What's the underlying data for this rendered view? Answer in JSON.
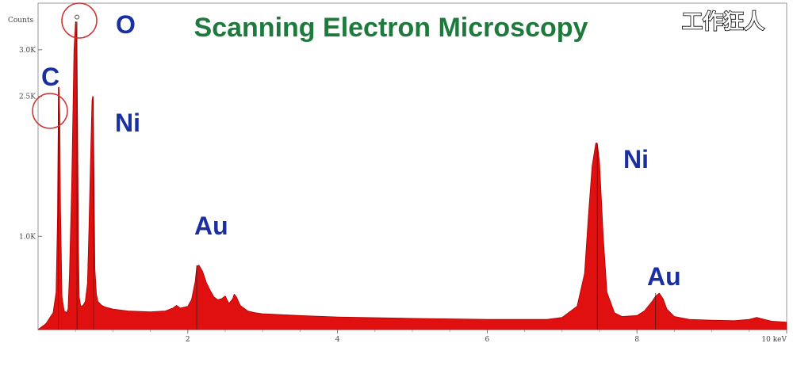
{
  "title": "Scanning Electron Microscopy",
  "watermark": "工作狂人",
  "colors": {
    "title": "#1e7a3c",
    "element_labels": "#1a2fa0",
    "spectrum_fill": "#e01010",
    "spectrum_edge": "#b00000",
    "circle": "#d03030"
  },
  "chart_data": {
    "type": "area",
    "xlim": [
      0,
      10
    ],
    "ylim": [
      0,
      3500
    ],
    "x_ticks": [
      "2",
      "4",
      "6",
      "8",
      "10 keV"
    ],
    "y_ticks": [
      "1.0K",
      "2.5K",
      "3.0K"
    ],
    "y_unit": "Counts",
    "series": [
      {
        "x": [
          0.0,
          0.1,
          0.12,
          0.15,
          0.2,
          0.24,
          0.26,
          0.27,
          0.28,
          0.29,
          0.3,
          0.32,
          0.35,
          0.38,
          0.4,
          0.42,
          0.45,
          0.48,
          0.5,
          0.51,
          0.52,
          0.53,
          0.54,
          0.55,
          0.57,
          0.6,
          0.63,
          0.66,
          0.68,
          0.7,
          0.72,
          0.73,
          0.74,
          0.75,
          0.76,
          0.78,
          0.8,
          0.85,
          0.9,
          0.95,
          1.0,
          1.2,
          1.5,
          1.7,
          1.8,
          1.85,
          1.9,
          2.0,
          2.05,
          2.1,
          2.12,
          2.15,
          2.2,
          2.25,
          2.3,
          2.35,
          2.4,
          2.45,
          2.5,
          2.55,
          2.6,
          2.62,
          2.65,
          2.7,
          2.75,
          2.8,
          2.9,
          3.0,
          3.5,
          4.0,
          5.0,
          6.0,
          6.8,
          7.0,
          7.2,
          7.3,
          7.35,
          7.4,
          7.45,
          7.47,
          7.5,
          7.55,
          7.6,
          7.7,
          7.8,
          8.0,
          8.1,
          8.2,
          8.25,
          8.3,
          8.35,
          8.4,
          8.5,
          8.7,
          9.0,
          9.3,
          9.5,
          9.6,
          9.7,
          9.8,
          10.0
        ],
        "y": [
          0,
          60,
          80,
          120,
          180,
          400,
          1200,
          2300,
          2600,
          2300,
          1300,
          350,
          200,
          180,
          220,
          600,
          1600,
          3000,
          3300,
          3300,
          3000,
          2000,
          900,
          350,
          250,
          260,
          300,
          500,
          1100,
          1800,
          2450,
          2500,
          2200,
          1400,
          650,
          380,
          300,
          260,
          240,
          230,
          220,
          200,
          190,
          200,
          230,
          260,
          230,
          250,
          320,
          520,
          680,
          690,
          620,
          500,
          420,
          350,
          320,
          330,
          360,
          280,
          330,
          380,
          350,
          260,
          230,
          200,
          180,
          170,
          150,
          135,
          120,
          110,
          110,
          130,
          250,
          600,
          1200,
          1750,
          2000,
          2000,
          1800,
          1000,
          400,
          180,
          140,
          150,
          200,
          300,
          360,
          390,
          330,
          220,
          140,
          110,
          100,
          95,
          110,
          130,
          110,
          90,
          80
        ]
      }
    ],
    "peak_labels": [
      {
        "text": "C",
        "x": 0.27,
        "y": 2600
      },
      {
        "text": "O",
        "x": 0.52,
        "y": 3300
      },
      {
        "text": "Ni",
        "x": 0.74,
        "y": 2500
      },
      {
        "text": "Au",
        "x": 2.12,
        "y": 690
      },
      {
        "text": "Ni",
        "x": 7.47,
        "y": 2000
      },
      {
        "text": "Au",
        "x": 8.25,
        "y": 390
      }
    ]
  },
  "labels": {
    "C": "C",
    "O": "O",
    "Ni_left": "Ni",
    "Au_left": "Au",
    "Ni_right": "Ni",
    "Au_right": "Au"
  }
}
